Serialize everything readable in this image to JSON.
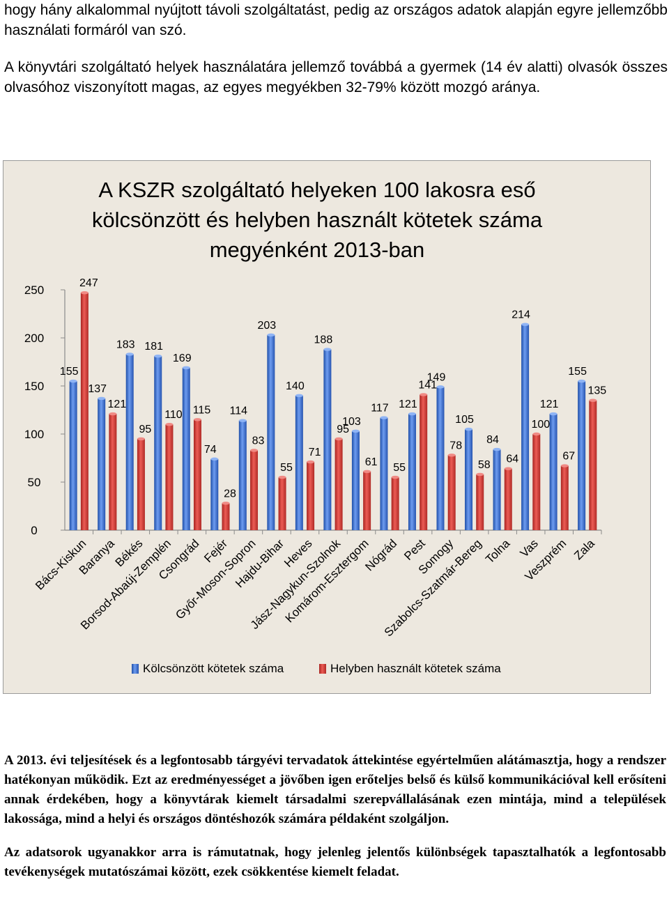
{
  "document": {
    "intro_paragraph_1": "hogy hány alkalommal nyújtott távoli szolgáltatást, pedig az országos adatok alapján egyre jellemzőbb használati formáról van szó.",
    "intro_paragraph_2": "A könyvtári szolgáltató helyek használatára jellemző továbbá a gyermek (14 év alatti) olvasók összes olvasóhoz viszonyított magas, az egyes megyékben 32-79% között mozgó aránya.",
    "closing_paragraph_1": "A 2013. évi teljesítések és a legfontosabb tárgyévi tervadatok áttekintése egyértelműen alátámasztja, hogy a rendszer hatékonyan működik. Ezt az eredményességet a jövőben igen erőteljes belső és külső kommunikációval kell erősíteni annak érdekében, hogy a könyvtárak kiemelt társadalmi szerepvállalásának ezen mintája, mind a települések lakossága, mind a helyi és országos döntéshozók számára példaként szolgáljon.",
    "closing_paragraph_2": "Az adatsorok ugyanakkor arra is rámutatnak, hogy jelenleg jelentős különbségek tapasztalhatók a legfontosabb tevékenységek mutatószámai között, ezek csökkentése kiemelt feladat."
  },
  "chart_data": {
    "type": "bar",
    "title_lines": [
      "A KSZR szolgáltató helyeken 100 lakosra eső",
      "kölcsönzött és helyben használt kötetek száma",
      "megyénként 2013-ban"
    ],
    "categories": [
      "Bács-Kiskun",
      "Baranya",
      "Békés",
      "Borsod-Abaúj-Zemplén",
      "Csongrád",
      "Fejér",
      "Győr-Moson-Sopron",
      "Hajdu-Bihar",
      "Heves",
      "Jász-Nagykun-Szolnok",
      "Komárom-Esztergom",
      "Nógrád",
      "Pest",
      "Somogy",
      "Szabolcs-Szatmár-Bereg",
      "Tolna",
      "Vas",
      "Veszprém",
      "Zala"
    ],
    "series": [
      {
        "name": "Kölcsönzött kötetek száma",
        "color": "#3a6fd1",
        "values": [
          155,
          137,
          183,
          181,
          169,
          74,
          114,
          203,
          140,
          188,
          103,
          117,
          121,
          149,
          105,
          84,
          214,
          121,
          155
        ]
      },
      {
        "name": "Helyben használt kötetek száma",
        "color": "#d03a35",
        "values": [
          247,
          121,
          95,
          110,
          115,
          28,
          83,
          55,
          71,
          95,
          61,
          55,
          141,
          78,
          58,
          64,
          100,
          67,
          135
        ]
      }
    ],
    "ylim": [
      0,
      250
    ],
    "yticks": [
      0,
      50,
      100,
      150,
      200,
      250
    ],
    "grid": false,
    "legend_position": "bottom",
    "background_color": "#ede8df"
  }
}
